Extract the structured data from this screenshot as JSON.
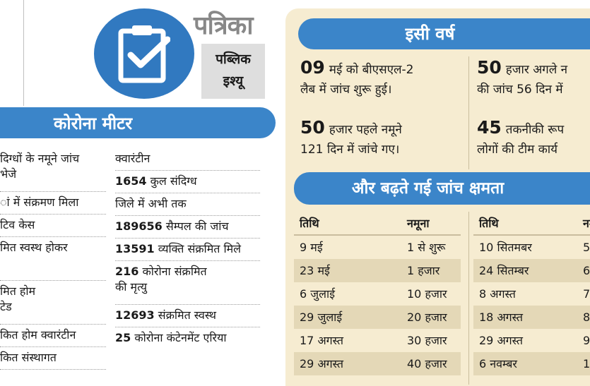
{
  "header": {
    "brand": "पत्रिका",
    "tag_line1": "पब्लिक",
    "tag_line2": "इश्यू",
    "logo_icon": "clipboard-check-icon"
  },
  "meter": {
    "title": "कोरोना मीटर",
    "left_rows": [
      {
        "l1": "दिग्धों के नमूने जांच",
        "l2": "भेजे"
      },
      {
        "l1": "ां में संक्रमण मिला",
        "l2": ""
      },
      {
        "l1": "टिव केस",
        "l2": ""
      },
      {
        "l1": "मित स्वस्थ होकर",
        "l2": ""
      },
      {
        "l1": "मित होम",
        "l2": "टेड"
      },
      {
        "l1": "कित होम क्वारंटीन",
        "l2": ""
      },
      {
        "l1": "कित संस्थागत",
        "l2": ""
      }
    ],
    "right_rows": [
      {
        "num": "",
        "text": "क्वारंटीन"
      },
      {
        "num": "1654",
        "text": "कुल संदिग्ध"
      },
      {
        "num": "",
        "text": "जिले में अभी तक"
      },
      {
        "num": "189656",
        "text": "सैम्पल की जांच"
      },
      {
        "num": "13591",
        "text": "व्यक्ति संक्रमित मिले"
      },
      {
        "num": "216",
        "text": "कोरोना संक्रमित",
        "text2": "की मृत्यु"
      },
      {
        "num": "12693",
        "text": "संक्रमित स्वस्थ"
      },
      {
        "num": "25",
        "text": "कोरोना कंटेनमेंट एरिया"
      }
    ]
  },
  "this_year": {
    "title": "इसी वर्ष",
    "facts": [
      {
        "num": "09",
        "l1": "मई को बीएसएल-2",
        "l2": "लैब में जांच शुरू हुई।"
      },
      {
        "num": "50",
        "l1": "हजार अगले न",
        "l2": "की जांच 56 दिन में"
      },
      {
        "num": "50",
        "l1": "हजार पहले नमूने",
        "l2": "121 दिन में जांचे गए।"
      },
      {
        "num": "45",
        "l1": "तकनीकी रूप",
        "l2": "लोगों की टीम कार्य"
      }
    ]
  },
  "capacity": {
    "title": "और बढ़ते गई जांच क्षमता",
    "col_date": "तिथि",
    "col_sample": "नमूना",
    "left_rows": [
      {
        "date": "9 मई",
        "sample": "1 से शुरू"
      },
      {
        "date": "23 मई",
        "sample": "1 हजार"
      },
      {
        "date": "6 जुलाई",
        "sample": "10 हजार"
      },
      {
        "date": "29 जुलाई",
        "sample": "20 हजार"
      },
      {
        "date": "17 अगस्त",
        "sample": "30 हजार"
      },
      {
        "date": "29 अगस्त",
        "sample": "40 हजार"
      }
    ],
    "right_rows": [
      {
        "date": "10 सितमबर",
        "sample": "5"
      },
      {
        "date": "24 सितम्बर",
        "sample": "6"
      },
      {
        "date": "8 अगस्त",
        "sample": "7"
      },
      {
        "date": "18 अगस्त",
        "sample": "8"
      },
      {
        "date": "29 अगस्त",
        "sample": "9"
      },
      {
        "date": "6 नवम्बर",
        "sample": "1"
      }
    ]
  }
}
